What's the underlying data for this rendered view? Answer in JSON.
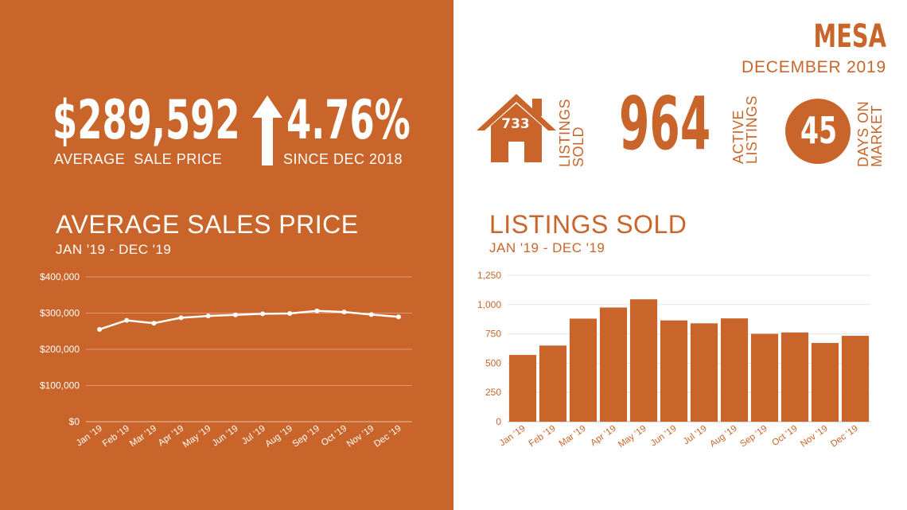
{
  "header": {
    "city": "MESA",
    "period": "DECEMBER 2019"
  },
  "kpis": {
    "avg_sale_price": {
      "value": "$289,592",
      "label": "AVERAGE  SALE PRICE"
    },
    "change": {
      "value": "4.76%",
      "label": "SINCE DEC 2018",
      "direction": "up",
      "icon": "up-arrow-icon"
    },
    "listings_sold": {
      "value": "733",
      "label_line1": "LISTINGS",
      "label_line2": "SOLD",
      "icon": "house-icon"
    },
    "active_listings": {
      "value": "964",
      "label_line1": "ACTIVE",
      "label_line2": "LISTINGS"
    },
    "days_on_market": {
      "value": "45",
      "label_line1": "DAYS ON",
      "label_line2": "MARKET",
      "icon": "circle-badge"
    }
  },
  "colors": {
    "accent": "#c9652a",
    "background": "#ffffff",
    "grid_light": "#e5e5e5"
  },
  "chart_data": [
    {
      "type": "line",
      "title": "AVERAGE SALES PRICE",
      "subtitle": "JAN '19 - DEC '19",
      "categories": [
        "Jan '19",
        "Feb '19",
        "Mar '19",
        "Apr '19",
        "May '19",
        "Jun '19",
        "Jul '19",
        "Aug '19",
        "Sep '19",
        "Oct '19",
        "Nov '19",
        "Dec '19"
      ],
      "values": [
        255000,
        280000,
        272000,
        287000,
        292000,
        295000,
        298000,
        299000,
        306000,
        303000,
        296000,
        289592
      ],
      "ylim": [
        0,
        400000
      ],
      "yticks": [
        0,
        100000,
        200000,
        300000,
        400000
      ],
      "ytick_labels": [
        "$0",
        "$100,000",
        "$200,000",
        "$300,000",
        "$400,000"
      ],
      "grid": true,
      "legend": false
    },
    {
      "type": "bar",
      "title": "LISTINGS SOLD",
      "subtitle": "JAN '19 - DEC '19",
      "categories": [
        "Jan '19",
        "Feb '19",
        "Mar '19",
        "Apr '19",
        "May '19",
        "Jun '19",
        "Jul '19",
        "Aug '19",
        "Sep '19",
        "Oct '19",
        "Nov '19",
        "Dec '19"
      ],
      "values": [
        570,
        650,
        880,
        975,
        1045,
        865,
        840,
        882,
        750,
        762,
        672,
        733
      ],
      "ylim": [
        0,
        1250
      ],
      "yticks": [
        0,
        250,
        500,
        750,
        1000,
        1250
      ],
      "ytick_labels": [
        "0",
        "250",
        "500",
        "750",
        "1,000",
        "1,250"
      ],
      "grid": true,
      "legend": false
    }
  ]
}
